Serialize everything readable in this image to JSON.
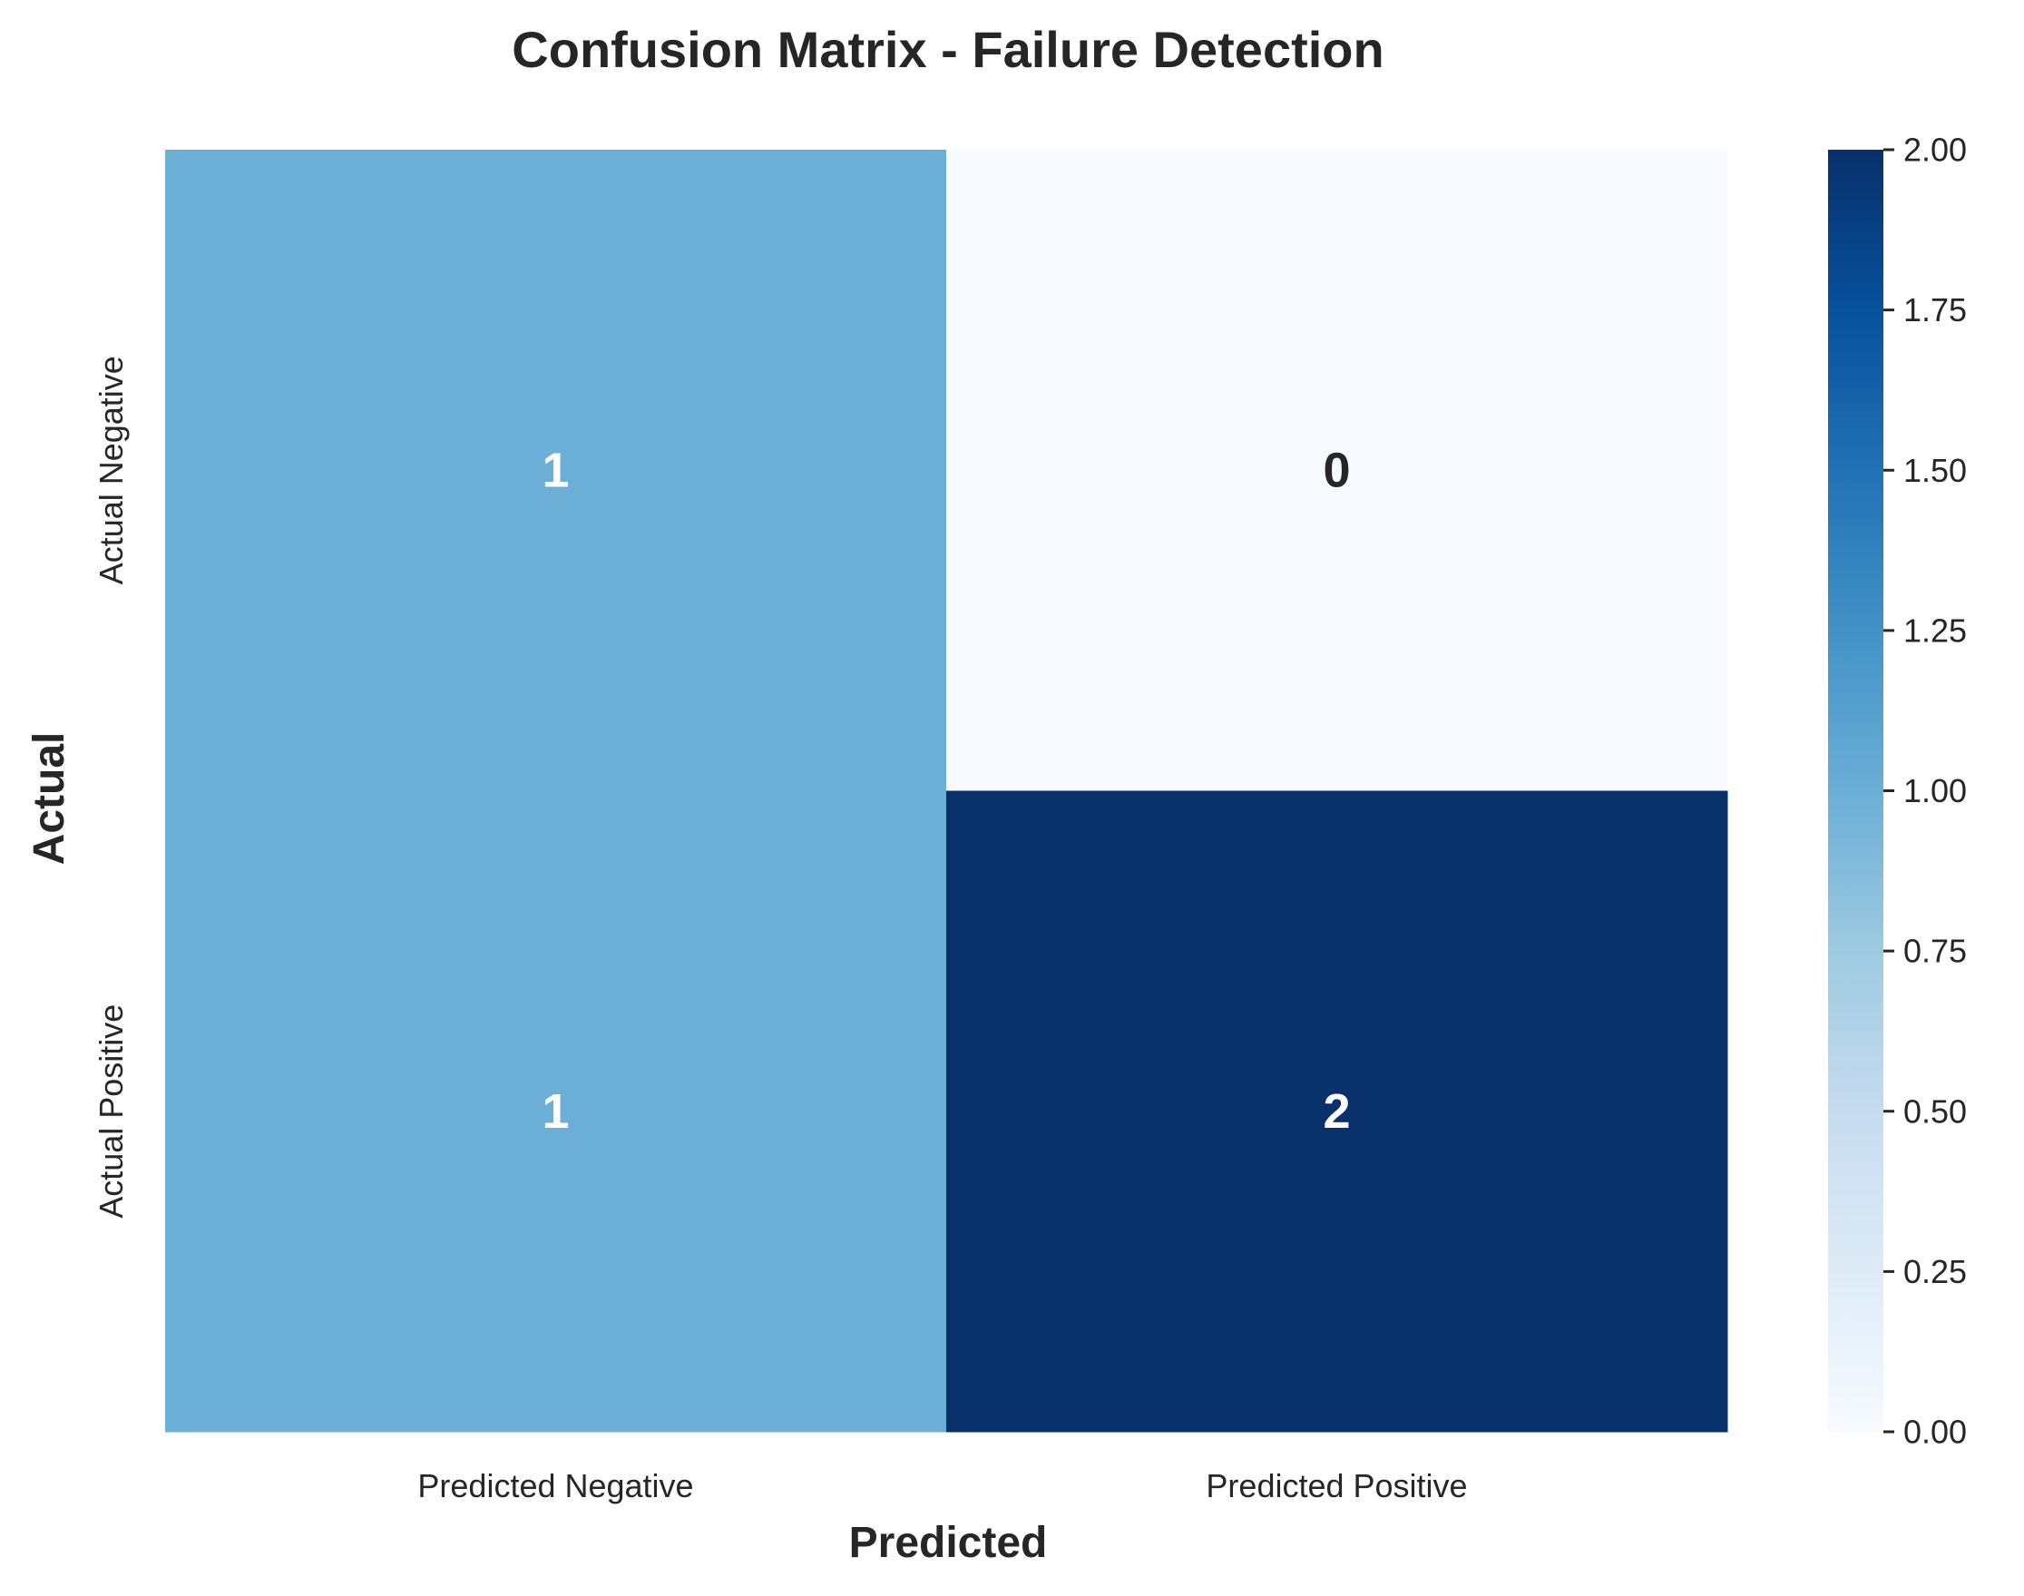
{
  "chart_data": {
    "type": "heatmap",
    "title": "Confusion Matrix - Failure Detection",
    "xlabel": "Predicted",
    "ylabel": "Actual",
    "x_categories": [
      "Predicted Negative",
      "Predicted Positive"
    ],
    "y_categories": [
      "Actual Negative",
      "Actual Positive"
    ],
    "values": [
      [
        1,
        0
      ],
      [
        1,
        2
      ]
    ],
    "colormap": "Blues",
    "colorbar": {
      "min": 0,
      "max": 2,
      "ticks": [
        0.0,
        0.25,
        0.5,
        0.75,
        1.0,
        1.25,
        1.5,
        1.75,
        2.0
      ],
      "tick_labels": [
        "0.00",
        "0.25",
        "0.50",
        "0.75",
        "1.00",
        "1.25",
        "1.50",
        "1.75",
        "2.00"
      ]
    },
    "colors": {
      "low": "#f7fbff",
      "mid": "#6baed6",
      "high": "#08306b",
      "text_dark": "#262626",
      "text_light": "#ffffff"
    },
    "grid": false
  }
}
